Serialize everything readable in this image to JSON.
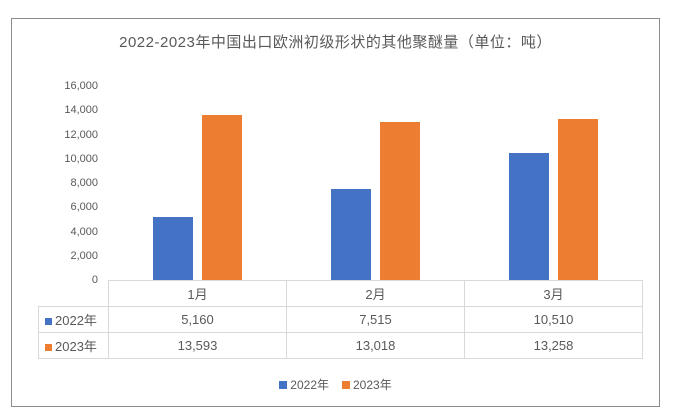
{
  "chart_data": {
    "type": "bar",
    "title": "2022-2023年中国出口欧洲初级形状的其他聚醚量（单位：吨）",
    "categories": [
      "1月",
      "2月",
      "3月"
    ],
    "series": [
      {
        "name": "2022年",
        "color": "#4472C4",
        "values": [
          5160,
          7515,
          10510
        ]
      },
      {
        "name": "2023年",
        "color": "#ED7D31",
        "values": [
          13593,
          13018,
          13258
        ]
      }
    ],
    "ylim": [
      0,
      16000
    ],
    "ytick_step": 2000,
    "ytick_labels": [
      "0",
      "2,000",
      "4,000",
      "6,000",
      "8,000",
      "10,000",
      "12,000",
      "14,000",
      "16,000"
    ],
    "grid": false,
    "legend_position": "bottom",
    "data_table_shown": true,
    "unit": "吨"
  },
  "colors": {
    "series_2022": "#4472C4",
    "series_2023": "#ED7D31",
    "text": "#595959",
    "table_border": "#D9D9D9",
    "frame_border": "#8C8C8C"
  }
}
